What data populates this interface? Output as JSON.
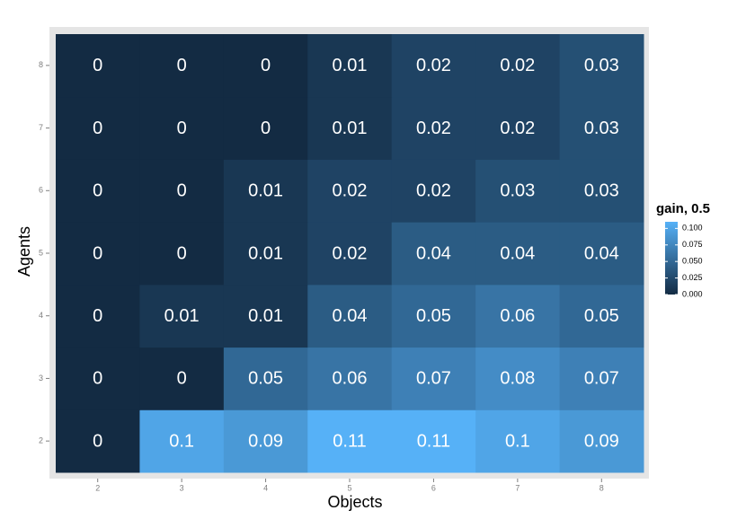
{
  "chart_data": {
    "type": "heatmap",
    "x_label": "Objects",
    "y_label": "Agents",
    "x": [
      2,
      3,
      4,
      5,
      6,
      7,
      8
    ],
    "y": [
      2,
      3,
      4,
      5,
      6,
      7,
      8
    ],
    "z": [
      [
        0,
        0.1,
        0.09,
        0.11,
        0.11,
        0.1,
        0.09
      ],
      [
        0,
        0,
        0.05,
        0.06,
        0.07,
        0.08,
        0.07
      ],
      [
        0,
        0.01,
        0.01,
        0.04,
        0.05,
        0.06,
        0.05
      ],
      [
        0,
        0,
        0.01,
        0.02,
        0.04,
        0.04,
        0.04
      ],
      [
        0,
        0,
        0.01,
        0.02,
        0.02,
        0.03,
        0.03
      ],
      [
        0,
        0,
        0,
        0.01,
        0.02,
        0.02,
        0.03
      ],
      [
        0,
        0,
        0,
        0.01,
        0.02,
        0.02,
        0.03
      ]
    ],
    "legend_title": "gain, 0.5",
    "colorlim": [
      0,
      0.11
    ],
    "colorticks": [
      {
        "value": 0,
        "label": "0.000"
      },
      {
        "value": 0.025,
        "label": "0.025"
      },
      {
        "value": 0.05,
        "label": "0.050"
      },
      {
        "value": 0.075,
        "label": "0.075"
      },
      {
        "value": 0.1,
        "label": "0.100"
      }
    ],
    "low_color": "#132B43",
    "high_color": "#56B1F7"
  }
}
